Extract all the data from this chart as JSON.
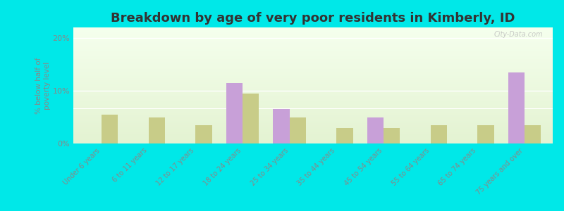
{
  "title": "Breakdown by age of very poor residents in Kimberly, ID",
  "categories": [
    "Under 6 years",
    "6 to 11 years",
    "12 to 17 years",
    "18 to 24 years",
    "25 to 34 years",
    "35 to 44 years",
    "45 to 54 years",
    "55 to 64 years",
    "65 to 74 years",
    "75 years and over"
  ],
  "kimberly": [
    0,
    0,
    0,
    11.5,
    6.5,
    0,
    5.0,
    0,
    0,
    13.5
  ],
  "idaho": [
    5.5,
    5.0,
    3.5,
    9.5,
    5.0,
    3.0,
    3.0,
    3.5,
    3.5,
    3.5
  ],
  "kimberly_color": "#c8a0d8",
  "idaho_color": "#c8cc88",
  "background_color": "#00e8e8",
  "title_fontsize": 13,
  "ylabel": "% below half of\npoverty level",
  "ylim": [
    0,
    22
  ],
  "yticks": [
    0,
    10,
    20
  ],
  "ytick_labels": [
    "0%",
    "10%",
    "20%"
  ],
  "bar_width": 0.35,
  "watermark": "City-Data.com"
}
